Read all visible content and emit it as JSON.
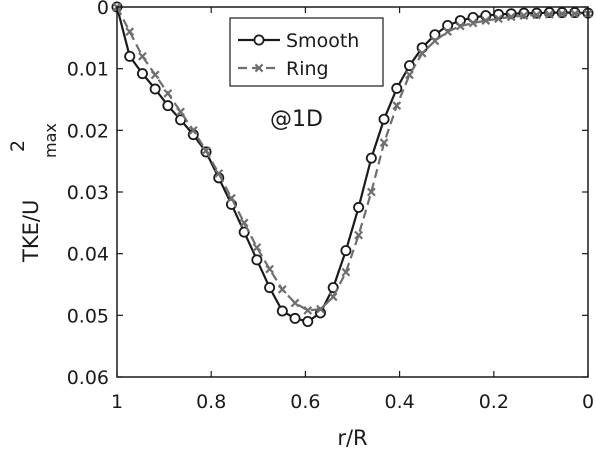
{
  "chart_data": {
    "type": "line",
    "xlabel": "r/R",
    "ylabel": {
      "base": "TKE/U",
      "superscript": "2",
      "subscript": "max"
    },
    "annotation": "@1D",
    "xlim": [
      1,
      0
    ],
    "ylim": [
      0,
      0.06
    ],
    "x_reversed": true,
    "y_reversed": true,
    "xticks": [
      1,
      0.8,
      0.6,
      0.4,
      0.2,
      0
    ],
    "xtick_labels": [
      "1",
      "0.8",
      "0.6",
      "0.4",
      "0.2",
      "0"
    ],
    "yticks": [
      0,
      0.01,
      0.02,
      0.03,
      0.04,
      0.05,
      0.06
    ],
    "ytick_labels": [
      "0",
      "0.01",
      "0.02",
      "0.03",
      "0.04",
      "0.05",
      "0.06"
    ],
    "grid": false,
    "legend_position": "top-center",
    "series": [
      {
        "name": "Smooth",
        "color": "#1a1a1a",
        "line_style": "solid",
        "marker": "circle",
        "x": [
          1.0,
          0.973,
          0.946,
          0.919,
          0.892,
          0.865,
          0.838,
          0.811,
          0.784,
          0.757,
          0.73,
          0.703,
          0.676,
          0.649,
          0.622,
          0.595,
          0.568,
          0.541,
          0.514,
          0.487,
          0.46,
          0.433,
          0.406,
          0.379,
          0.352,
          0.325,
          0.298,
          0.271,
          0.244,
          0.217,
          0.19,
          0.163,
          0.136,
          0.109,
          0.082,
          0.055,
          0.028,
          0.0
        ],
        "y": [
          0.0,
          0.008,
          0.0108,
          0.0133,
          0.016,
          0.0183,
          0.0207,
          0.0235,
          0.0277,
          0.032,
          0.0365,
          0.041,
          0.0455,
          0.0493,
          0.0505,
          0.051,
          0.0496,
          0.0455,
          0.0395,
          0.0325,
          0.0245,
          0.0182,
          0.0132,
          0.0095,
          0.0066,
          0.0045,
          0.003,
          0.0022,
          0.0017,
          0.0014,
          0.0012,
          0.0011,
          0.001,
          0.001,
          0.0009,
          0.0009,
          0.0009,
          0.001
        ]
      },
      {
        "name": "Ring",
        "color": "#6e6e6e",
        "line_style": "dashed",
        "marker": "x",
        "x": [
          1.0,
          0.973,
          0.946,
          0.919,
          0.892,
          0.865,
          0.838,
          0.811,
          0.784,
          0.757,
          0.73,
          0.703,
          0.676,
          0.649,
          0.622,
          0.595,
          0.568,
          0.541,
          0.514,
          0.487,
          0.46,
          0.433,
          0.406,
          0.379,
          0.352,
          0.325,
          0.298,
          0.271,
          0.244,
          0.217,
          0.19,
          0.163,
          0.136,
          0.109,
          0.082,
          0.055,
          0.028,
          0.0
        ],
        "y": [
          0.0,
          0.004,
          0.008,
          0.011,
          0.014,
          0.017,
          0.02,
          0.0233,
          0.027,
          0.031,
          0.035,
          0.039,
          0.0425,
          0.0458,
          0.048,
          0.0492,
          0.049,
          0.047,
          0.043,
          0.037,
          0.03,
          0.022,
          0.016,
          0.011,
          0.0075,
          0.0055,
          0.004,
          0.0031,
          0.0026,
          0.0022,
          0.0019,
          0.0016,
          0.0014,
          0.0013,
          0.0012,
          0.0011,
          0.0011,
          0.0011
        ]
      }
    ]
  }
}
